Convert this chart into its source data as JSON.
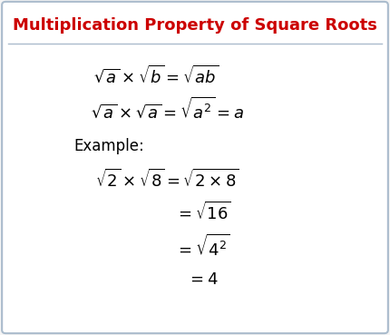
{
  "title": "Multiplication Property of Square Roots",
  "title_color": "#cc0000",
  "title_fontsize": 13,
  "background_color": "#f5f5f5",
  "box_color": "#ffffff",
  "border_color": "#aabbcc",
  "text_color": "#000000",
  "formula1": "$\\sqrt{a} \\times \\sqrt{b} = \\sqrt{ab}$",
  "formula2": "$\\sqrt{a} \\times \\sqrt{a} = \\sqrt{a^2} = a$",
  "example_label": "Example:",
  "ex_line1": "$\\sqrt{2} \\times \\sqrt{8} = \\sqrt{2 \\times 8}$",
  "ex_line2": "$= \\sqrt{16}$",
  "ex_line3": "$= \\sqrt{4^2}$",
  "ex_line4": "$= 4$",
  "formula_fontsize": 13,
  "example_label_fontsize": 12,
  "example_fontsize": 13
}
